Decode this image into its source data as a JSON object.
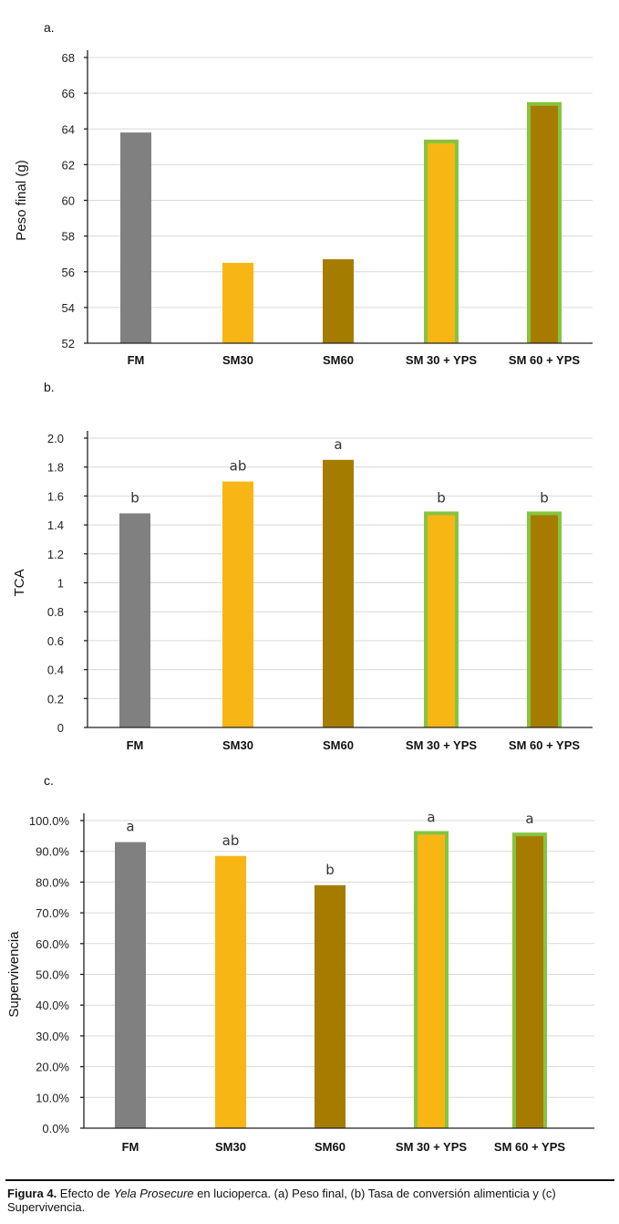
{
  "colors": {
    "FM": "#808080",
    "SM30": "#f7b614",
    "SM60": "#a67c00",
    "outline": "#9dcf5f",
    "outline_strong": "#86c440"
  },
  "chart_data": [
    {
      "type": "bar",
      "panel": "a.",
      "ylabel": "Peso final (g)",
      "xlabel": "",
      "categories": [
        "FM",
        "SM30",
        "SM60",
        "SM 30 + YPS",
        "SM 60 + YPS"
      ],
      "values": [
        63.8,
        56.5,
        56.7,
        63.3,
        65.4
      ],
      "ylim": [
        52,
        68
      ],
      "yticks": [
        "52",
        "54",
        "56",
        "58",
        "60",
        "62",
        "64",
        "66",
        "68"
      ],
      "ytick_values": [
        52,
        54,
        56,
        58,
        60,
        62,
        64,
        66,
        68
      ],
      "letters": [
        "",
        "",
        "",
        "",
        ""
      ],
      "grid": true
    },
    {
      "type": "bar",
      "panel": "b.",
      "ylabel": "TCA",
      "xlabel": "",
      "categories": [
        "FM",
        "SM30",
        "SM60",
        "SM 30 + YPS",
        "SM 60 + YPS"
      ],
      "values": [
        1.48,
        1.7,
        1.85,
        1.48,
        1.48
      ],
      "ylim": [
        0,
        2.0
      ],
      "yticks": [
        "0",
        "0.2",
        "0.4",
        "0.6",
        "0.8",
        "1",
        "1.2",
        "1.4",
        "1.6",
        "1.8",
        "2.0"
      ],
      "ytick_values": [
        0,
        0.2,
        0.4,
        0.6,
        0.8,
        1,
        1.2,
        1.4,
        1.6,
        1.8,
        2.0
      ],
      "letters": [
        "b",
        "ab",
        "a",
        "b",
        "b"
      ],
      "grid": true
    },
    {
      "type": "bar",
      "panel": "c.",
      "ylabel": "Supervivencia",
      "xlabel": "",
      "categories": [
        "FM",
        "SM30",
        "SM60",
        "SM 30 + YPS",
        "SM 60 + YPS"
      ],
      "values": [
        93,
        88.5,
        79,
        96,
        95.5
      ],
      "ylim": [
        0,
        100
      ],
      "yticks": [
        "0.0%",
        "10.0%",
        "20.0%",
        "30.0%",
        "40.0%",
        "50.0%",
        "60.0%",
        "70.0%",
        "80.0%",
        "90.0%",
        "100.0%"
      ],
      "ytick_values": [
        0,
        10,
        20,
        30,
        40,
        50,
        60,
        70,
        80,
        90,
        100
      ],
      "letters": [
        "a",
        "ab",
        "b",
        "a",
        "a"
      ],
      "grid": true
    }
  ],
  "caption": {
    "label": "Figura 4.",
    "text_before": " Efecto de ",
    "italic": "Yela Prosecure",
    "text_after": " en lucioperca. (a) Peso final, (b) Tasa de conversión alimenticia y (c) Supervivencia."
  }
}
